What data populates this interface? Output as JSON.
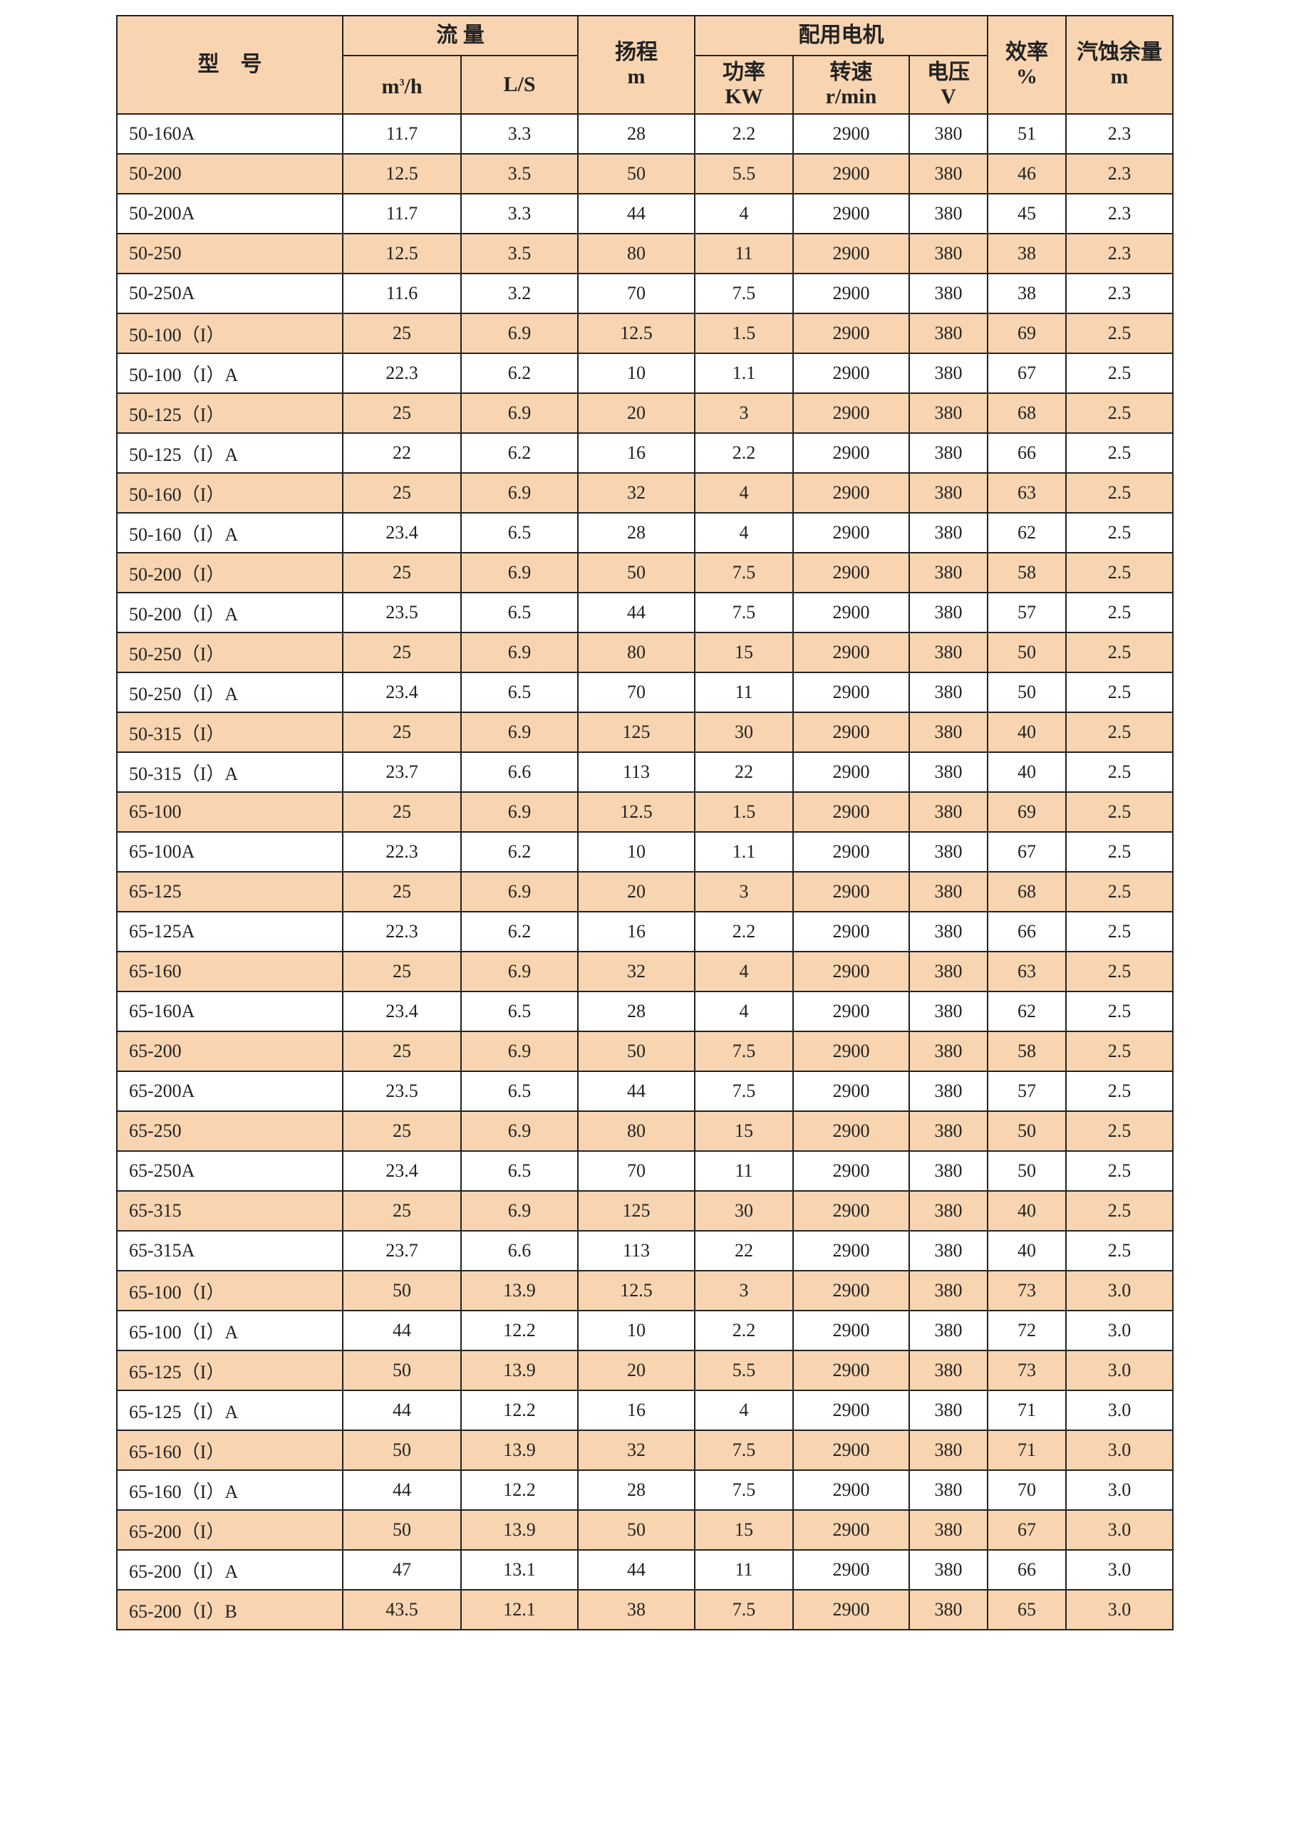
{
  "header": {
    "model": "型　号",
    "flow": "流 量",
    "flow_m3h_base": "m",
    "flow_m3h_sup": "3",
    "flow_m3h_rest": "/h",
    "flow_ls": "L/S",
    "head": "扬程",
    "head_unit": "m",
    "motor": "配用电机",
    "power": "功率",
    "power_unit": "KW",
    "speed": "转速",
    "speed_unit": "r/min",
    "voltage": "电压",
    "voltage_unit": "V",
    "efficiency": "效率",
    "efficiency_unit": "%",
    "npsh": "汽蚀余量",
    "npsh_unit": "m"
  },
  "row_color": "#f8d5b0",
  "rows": [
    [
      "50-160A",
      "11.7",
      "3.3",
      "28",
      "2.2",
      "2900",
      "380",
      "51",
      "2.3"
    ],
    [
      "50-200",
      "12.5",
      "3.5",
      "50",
      "5.5",
      "2900",
      "380",
      "46",
      "2.3"
    ],
    [
      "50-200A",
      "11.7",
      "3.3",
      "44",
      "4",
      "2900",
      "380",
      "45",
      "2.3"
    ],
    [
      "50-250",
      "12.5",
      "3.5",
      "80",
      "11",
      "2900",
      "380",
      "38",
      "2.3"
    ],
    [
      "50-250A",
      "11.6",
      "3.2",
      "70",
      "7.5",
      "2900",
      "380",
      "38",
      "2.3"
    ],
    [
      "50-100（I）",
      "25",
      "6.9",
      "12.5",
      "1.5",
      "2900",
      "380",
      "69",
      "2.5"
    ],
    [
      "50-100（I）A",
      "22.3",
      "6.2",
      "10",
      "1.1",
      "2900",
      "380",
      "67",
      "2.5"
    ],
    [
      "50-125（I）",
      "25",
      "6.9",
      "20",
      "3",
      "2900",
      "380",
      "68",
      "2.5"
    ],
    [
      "50-125（I）A",
      "22",
      "6.2",
      "16",
      "2.2",
      "2900",
      "380",
      "66",
      "2.5"
    ],
    [
      "50-160（I）",
      "25",
      "6.9",
      "32",
      "4",
      "2900",
      "380",
      "63",
      "2.5"
    ],
    [
      "50-160（I）A",
      "23.4",
      "6.5",
      "28",
      "4",
      "2900",
      "380",
      "62",
      "2.5"
    ],
    [
      "50-200（I）",
      "25",
      "6.9",
      "50",
      "7.5",
      "2900",
      "380",
      "58",
      "2.5"
    ],
    [
      "50-200（I）A",
      "23.5",
      "6.5",
      "44",
      "7.5",
      "2900",
      "380",
      "57",
      "2.5"
    ],
    [
      "50-250（I）",
      "25",
      "6.9",
      "80",
      "15",
      "2900",
      "380",
      "50",
      "2.5"
    ],
    [
      "50-250（I）A",
      "23.4",
      "6.5",
      "70",
      "11",
      "2900",
      "380",
      "50",
      "2.5"
    ],
    [
      "50-315（I）",
      "25",
      "6.9",
      "125",
      "30",
      "2900",
      "380",
      "40",
      "2.5"
    ],
    [
      "50-315（I）A",
      "23.7",
      "6.6",
      "113",
      "22",
      "2900",
      "380",
      "40",
      "2.5"
    ],
    [
      "65-100",
      "25",
      "6.9",
      "12.5",
      "1.5",
      "2900",
      "380",
      "69",
      "2.5"
    ],
    [
      "65-100A",
      "22.3",
      "6.2",
      "10",
      "1.1",
      "2900",
      "380",
      "67",
      "2.5"
    ],
    [
      "65-125",
      "25",
      "6.9",
      "20",
      "3",
      "2900",
      "380",
      "68",
      "2.5"
    ],
    [
      "65-125A",
      "22.3",
      "6.2",
      "16",
      "2.2",
      "2900",
      "380",
      "66",
      "2.5"
    ],
    [
      "65-160",
      "25",
      "6.9",
      "32",
      "4",
      "2900",
      "380",
      "63",
      "2.5"
    ],
    [
      "65-160A",
      "23.4",
      "6.5",
      "28",
      "4",
      "2900",
      "380",
      "62",
      "2.5"
    ],
    [
      "65-200",
      "25",
      "6.9",
      "50",
      "7.5",
      "2900",
      "380",
      "58",
      "2.5"
    ],
    [
      "65-200A",
      "23.5",
      "6.5",
      "44",
      "7.5",
      "2900",
      "380",
      "57",
      "2.5"
    ],
    [
      "65-250",
      "25",
      "6.9",
      "80",
      "15",
      "2900",
      "380",
      "50",
      "2.5"
    ],
    [
      "65-250A",
      "23.4",
      "6.5",
      "70",
      "11",
      "2900",
      "380",
      "50",
      "2.5"
    ],
    [
      "65-315",
      "25",
      "6.9",
      "125",
      "30",
      "2900",
      "380",
      "40",
      "2.5"
    ],
    [
      "65-315A",
      "23.7",
      "6.6",
      "113",
      "22",
      "2900",
      "380",
      "40",
      "2.5"
    ],
    [
      "65-100（I）",
      "50",
      "13.9",
      "12.5",
      "3",
      "2900",
      "380",
      "73",
      "3.0"
    ],
    [
      "65-100（I）A",
      "44",
      "12.2",
      "10",
      "2.2",
      "2900",
      "380",
      "72",
      "3.0"
    ],
    [
      "65-125（I）",
      "50",
      "13.9",
      "20",
      "5.5",
      "2900",
      "380",
      "73",
      "3.0"
    ],
    [
      "65-125（I）A",
      "44",
      "12.2",
      "16",
      "4",
      "2900",
      "380",
      "71",
      "3.0"
    ],
    [
      "65-160（I）",
      "50",
      "13.9",
      "32",
      "7.5",
      "2900",
      "380",
      "71",
      "3.0"
    ],
    [
      "65-160（I）A",
      "44",
      "12.2",
      "28",
      "7.5",
      "2900",
      "380",
      "70",
      "3.0"
    ],
    [
      "65-200（I）",
      "50",
      "13.9",
      "50",
      "15",
      "2900",
      "380",
      "67",
      "3.0"
    ],
    [
      "65-200（I）A",
      "47",
      "13.1",
      "44",
      "11",
      "2900",
      "380",
      "66",
      "3.0"
    ],
    [
      "65-200（I）B",
      "43.5",
      "12.1",
      "38",
      "7.5",
      "2900",
      "380",
      "65",
      "3.0"
    ]
  ]
}
